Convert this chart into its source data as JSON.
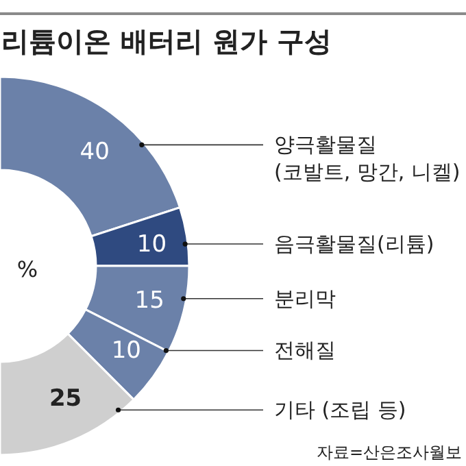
{
  "chart_data": {
    "type": "donut",
    "title": "리튬이온 배터리 원가 구성",
    "categories": [
      "양극활물질 (코발트, 망간, 니켈)",
      "음극활물질(리튬)",
      "분리막",
      "전해질",
      "기타 (조립 등)"
    ],
    "values": [
      40,
      10,
      15,
      10,
      25
    ],
    "colors": [
      "#6b81a9",
      "#2f4a80",
      "#6b81a9",
      "#6b81a9",
      "#cfcfcf"
    ],
    "data_labels": true,
    "annotations": [
      "%",
      "자료=산은조사월보"
    ]
  }
}
